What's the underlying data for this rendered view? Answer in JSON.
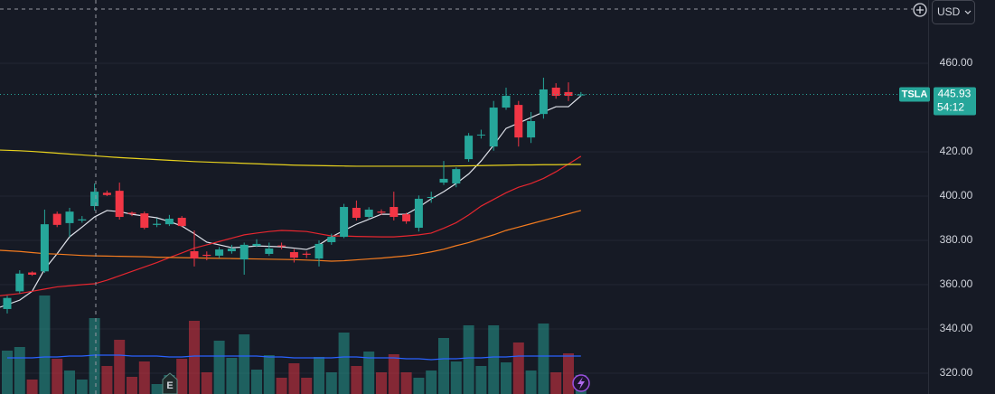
{
  "chart_data": {
    "type": "candlestick",
    "symbol": "TSLA",
    "currency": "USD",
    "countdown": "54:12",
    "earnings_marker": "E",
    "ylim": [
      310.6,
      488.6
    ],
    "yticks": [
      {
        "value": 460,
        "label": "460.00"
      },
      {
        "value": 420,
        "label": "420.00"
      },
      {
        "value": 400,
        "label": "400.00"
      },
      {
        "value": 380,
        "label": "380.00"
      },
      {
        "value": 360,
        "label": "360.00"
      },
      {
        "value": 340,
        "label": "340.00"
      },
      {
        "value": 320,
        "label": "320.00"
      }
    ],
    "grid": true,
    "up_color": "#26a69a",
    "down_color": "#f23645",
    "open": [
      349,
      357,
      365.5,
      366,
      392,
      387.8,
      389,
      395.5,
      401.5,
      402.4,
      392.5,
      392.2,
      387,
      387.3,
      390.2,
      375.1,
      373.5,
      373.1,
      375.1,
      371.4,
      377.5,
      373.9,
      377.7,
      374.7,
      374,
      371.8,
      379.2,
      381.6,
      394.7,
      390.6,
      393,
      395.1,
      391.8,
      385.7,
      399.2,
      406.1,
      405.7,
      416.7,
      427.5,
      422.4,
      440,
      441.2,
      426.5,
      437.1,
      449,
      447,
      445.5
    ],
    "high": [
      355,
      366.5,
      366,
      393.9,
      393,
      394.7,
      391,
      405.7,
      402.5,
      406.1,
      393,
      393,
      390,
      391.5,
      391,
      384.5,
      375,
      377,
      378,
      379,
      380.5,
      379,
      379,
      376,
      375,
      380,
      383,
      396.5,
      398,
      395,
      394,
      402,
      392.5,
      400.3,
      402,
      415.9,
      413,
      428.5,
      430,
      443,
      449,
      443,
      438,
      453.5,
      451,
      451.4,
      447
    ],
    "low": [
      347,
      356,
      364,
      365.3,
      386,
      381.6,
      388,
      393.5,
      400,
      389.4,
      391,
      385,
      386,
      386.5,
      386,
      368.2,
      371,
      372,
      374,
      364.5,
      377,
      373,
      376,
      370,
      372,
      368.2,
      378,
      381,
      389,
      389.5,
      391.5,
      389,
      387.5,
      384,
      397,
      405,
      404,
      415.5,
      426,
      420.5,
      439,
      422.4,
      424,
      435,
      444,
      443,
      445
    ],
    "close": [
      354,
      365,
      364.5,
      387.3,
      387,
      393,
      389.5,
      402,
      400.5,
      390.6,
      392,
      385.7,
      387.5,
      389.8,
      386.5,
      371.8,
      373,
      375.9,
      376.3,
      378,
      378.4,
      376.3,
      377.5,
      372.2,
      373.5,
      378.4,
      381.6,
      395.1,
      390.2,
      393.9,
      392.5,
      390.6,
      388.6,
      398.8,
      399.6,
      407.8,
      412.2,
      427.3,
      427.8,
      440,
      445.3,
      426.5,
      433.9,
      448.2,
      445.3,
      445.3,
      445.93
    ],
    "volume": [
      48,
      52,
      16,
      109,
      39,
      26,
      16,
      84,
      31,
      60,
      19,
      36,
      11,
      21,
      39,
      81,
      24,
      59,
      40,
      66,
      27,
      43,
      18,
      34,
      18,
      41,
      24,
      68,
      31,
      47,
      24,
      44,
      24,
      18,
      26,
      62,
      36,
      76,
      31,
      76,
      35,
      57,
      26,
      78,
      24,
      45,
      21
    ],
    "volume_ylim": [
      0,
      250
    ],
    "volume_ma": {
      "color": "#2962ff",
      "values": [
        40,
        40,
        40,
        41,
        41,
        42,
        42,
        43,
        43,
        43,
        42,
        42,
        42,
        41,
        41,
        42,
        42,
        42,
        42,
        42,
        42,
        41,
        41,
        40,
        40,
        40,
        40,
        41,
        41,
        40,
        40,
        40,
        39,
        39,
        38,
        39,
        39,
        40,
        40,
        41,
        41,
        42,
        42,
        42,
        42,
        42,
        42
      ]
    },
    "moving_averages": [
      {
        "color": "#e0e3eb",
        "values": [
          349.8,
          353,
          357,
          367,
          374,
          381.6,
          386,
          390.6,
          393.5,
          393,
          391.8,
          391,
          390.2,
          388.5,
          386.5,
          383,
          379.2,
          378,
          376.7,
          377,
          377.5,
          377.3,
          377.1,
          376.5,
          375.9,
          378,
          381.6,
          384.5,
          387.3,
          389.5,
          391.8,
          391.8,
          391.8,
          395,
          398.8,
          402,
          405.7,
          410,
          415.9,
          423,
          430.6,
          433,
          435.5,
          438,
          440.4,
          440.4,
          445.3
        ]
      },
      {
        "color": "#e5262f",
        "values": [
          355,
          356,
          357,
          358,
          359,
          359.5,
          360,
          360.4,
          362,
          364,
          366,
          368,
          370,
          372.2,
          374.3,
          376.5,
          378,
          379.5,
          381,
          382.5,
          383.3,
          384,
          384.5,
          384.3,
          384,
          383,
          382,
          382,
          381.8,
          381.7,
          381.6,
          381.6,
          382,
          382.5,
          383.3,
          385.5,
          388,
          391.5,
          395.5,
          398.5,
          401.5,
          404,
          405.7,
          408,
          411,
          414.5,
          418
        ]
      },
      {
        "color": "#f57c1f",
        "values": [
          375.5,
          375,
          374.5,
          374,
          373.8,
          373.5,
          373.2,
          373,
          372.9,
          372.8,
          372.7,
          372.6,
          372.4,
          372.3,
          372.2,
          372.1,
          372,
          371.9,
          371.8,
          371.7,
          371.6,
          371.5,
          371.4,
          371.3,
          371.1,
          370.9,
          370.6,
          370.8,
          371.2,
          371.6,
          372,
          372.5,
          373,
          373.8,
          374.8,
          376,
          377.6,
          379,
          380.8,
          382.5,
          384.5,
          386,
          387.5,
          389,
          390.5,
          392,
          393.5
        ]
      },
      {
        "color": "#e8d21d",
        "values": [
          420.8,
          420.5,
          420.2,
          419.8,
          419.4,
          419,
          418.6,
          418.2,
          417.8,
          417.4,
          417.1,
          416.8,
          416.5,
          416.2,
          415.9,
          415.6,
          415.4,
          415.2,
          415,
          414.8,
          414.6,
          414.4,
          414.2,
          414,
          413.9,
          413.8,
          413.7,
          413.6,
          413.5,
          413.5,
          413.5,
          413.5,
          413.5,
          413.5,
          413.5,
          413.5,
          413.6,
          413.7,
          413.8,
          413.9,
          414,
          414.1,
          414.1,
          414.2,
          414.2,
          414.3,
          414.3
        ]
      }
    ]
  }
}
